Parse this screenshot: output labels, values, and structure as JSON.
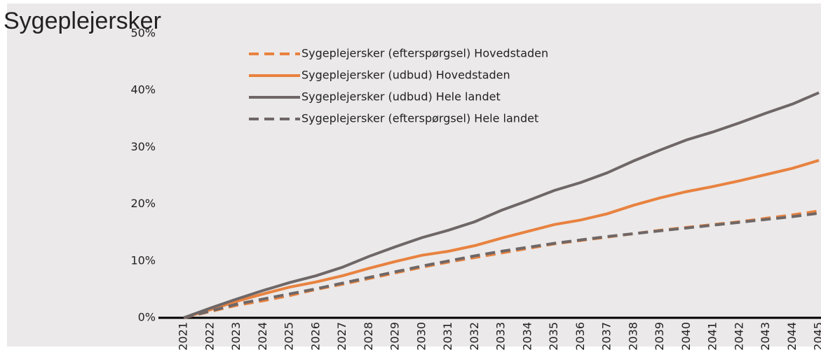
{
  "chart_data": {
    "type": "line",
    "title": "Sygeplejersker",
    "categories": [
      "2021",
      "2022",
      "2023",
      "2024",
      "2025",
      "2026",
      "2027",
      "2028",
      "2029",
      "2030",
      "2031",
      "2032",
      "2033",
      "2034",
      "2035",
      "2036",
      "2037",
      "2038",
      "2039",
      "2040",
      "2041",
      "2042",
      "2043",
      "2044",
      "2045"
    ],
    "series": [
      {
        "name": "Sygeplejersker (efterspørgsel) Hovedstaden",
        "color": "#e8823f",
        "dashed": true,
        "values": [
          0,
          1.1,
          2.2,
          3.0,
          3.9,
          5.0,
          5.9,
          6.9,
          7.9,
          8.9,
          9.8,
          10.6,
          11.4,
          12.2,
          13.0,
          13.6,
          14.2,
          14.8,
          15.4,
          15.9,
          16.4,
          16.9,
          17.5,
          18.1,
          18.8
        ]
      },
      {
        "name": "Sygeplejersker (udbud) Hovedstaden",
        "color": "#e8823f",
        "dashed": false,
        "values": [
          0,
          1.4,
          2.9,
          4.2,
          5.4,
          6.3,
          7.4,
          8.7,
          9.9,
          11.0,
          11.7,
          12.7,
          14.0,
          15.2,
          16.4,
          17.2,
          18.3,
          19.8,
          21.1,
          22.2,
          23.1,
          24.1,
          25.2,
          26.3,
          27.7
        ]
      },
      {
        "name": "Sygeplejersker (udbud) Hele landet",
        "color": "#6f6767",
        "dashed": false,
        "values": [
          0,
          1.7,
          3.3,
          4.8,
          6.2,
          7.4,
          8.9,
          10.8,
          12.5,
          14.1,
          15.4,
          16.9,
          18.9,
          20.6,
          22.4,
          23.8,
          25.5,
          27.6,
          29.5,
          31.3,
          32.7,
          34.3,
          36.0,
          37.6,
          39.6
        ]
      },
      {
        "name": "Sygeplejersker (efterspørgsel) Hele landet",
        "color": "#6f6767",
        "dashed": true,
        "values": [
          0,
          1.2,
          2.4,
          3.3,
          4.2,
          5.1,
          6.1,
          7.1,
          8.1,
          9.1,
          10.0,
          10.9,
          11.7,
          12.4,
          13.1,
          13.7,
          14.3,
          14.8,
          15.3,
          15.8,
          16.3,
          16.8,
          17.3,
          17.8,
          18.4
        ]
      }
    ],
    "ylim": [
      0,
      50
    ],
    "yticks": [
      {
        "value": 0,
        "label": "0%"
      },
      {
        "value": 10,
        "label": "10%"
      },
      {
        "value": 20,
        "label": "20%"
      },
      {
        "value": 30,
        "label": "30%"
      },
      {
        "value": 40,
        "label": "40%"
      },
      {
        "value": 50,
        "label": "50%"
      }
    ],
    "legend": "top"
  }
}
